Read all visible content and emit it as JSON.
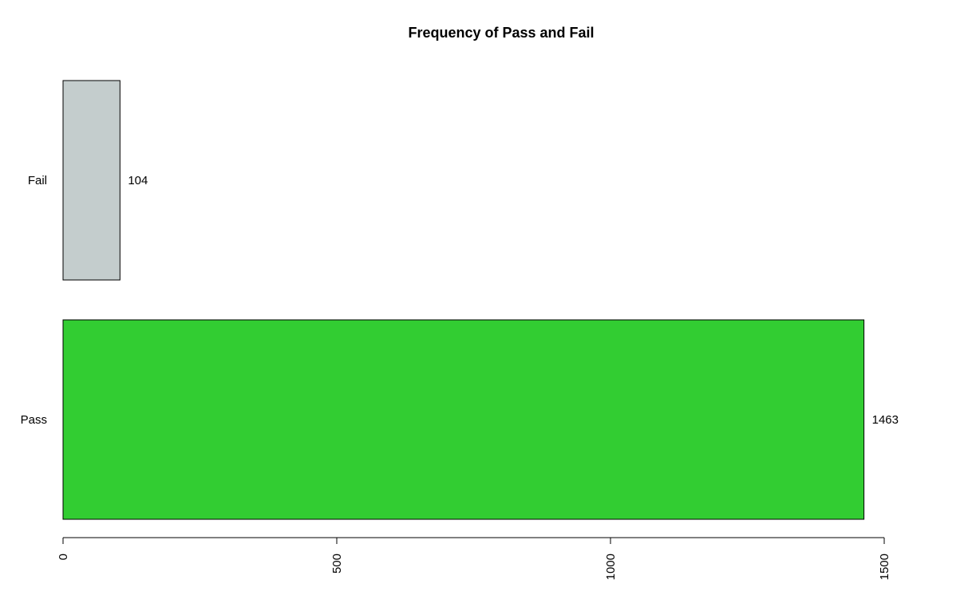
{
  "chart_data": {
    "type": "bar",
    "orientation": "horizontal",
    "title": "Frequency of Pass and Fail",
    "xlabel": "",
    "ylabel": "",
    "categories": [
      "Pass",
      "Fail"
    ],
    "values": [
      1463,
      104
    ],
    "value_labels": [
      "1463",
      "104"
    ],
    "colors": [
      "#32cd32",
      "#c4cdcd"
    ],
    "xlim": [
      0,
      1500
    ],
    "ticks": [
      0,
      500,
      1000,
      1500
    ],
    "tick_labels": [
      "0",
      "500",
      "1000",
      "1500"
    ],
    "grid": false,
    "legend": "none"
  }
}
